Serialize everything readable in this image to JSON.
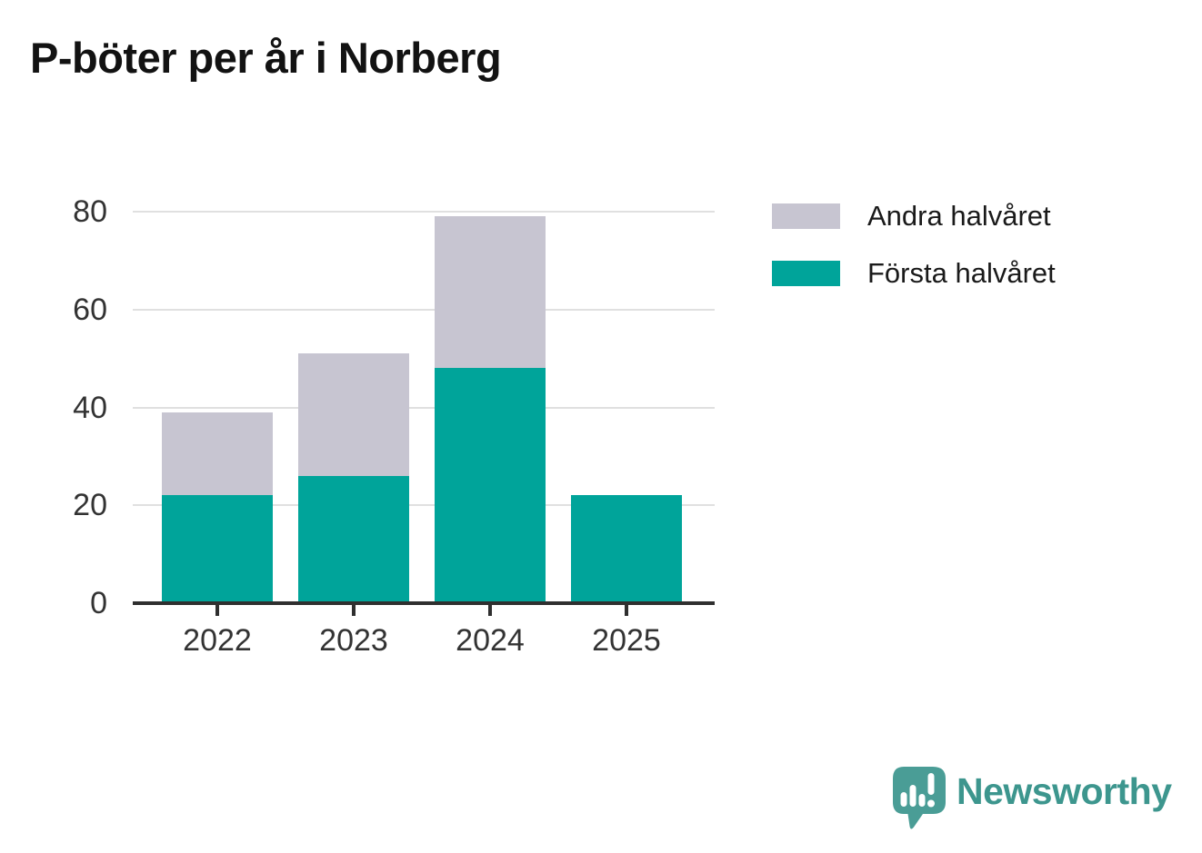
{
  "title": "P-böter per år i Norberg",
  "chart_data": {
    "type": "bar",
    "stacked": true,
    "title": "P-böter per år i Norberg",
    "categories": [
      "2022",
      "2023",
      "2024",
      "2025"
    ],
    "series": [
      {
        "name": "Första halvåret",
        "color": "#00a49a",
        "values": [
          22,
          26,
          48,
          22
        ]
      },
      {
        "name": "Andra halvåret",
        "color": "#c7c5d1",
        "values": [
          17,
          25,
          31,
          0
        ]
      }
    ],
    "totals": [
      39,
      51,
      79,
      22
    ],
    "xlabel": "",
    "ylabel": "",
    "ylim": [
      0,
      80
    ],
    "yticks": [
      0,
      20,
      40,
      60,
      80
    ],
    "grid": true,
    "legend_position": "right"
  },
  "legend": {
    "items": [
      {
        "label": "Andra halvåret",
        "color": "#c7c5d1"
      },
      {
        "label": "Första halvåret",
        "color": "#00a49a"
      }
    ]
  },
  "axes": {
    "grid_color": "#e0e0e0",
    "axis_color": "#2f2f2f",
    "tick_label_color": "#333333"
  },
  "branding": {
    "name": "Newsworthy",
    "icon_color": "#4a9d96",
    "text_color": "#3d968e"
  }
}
